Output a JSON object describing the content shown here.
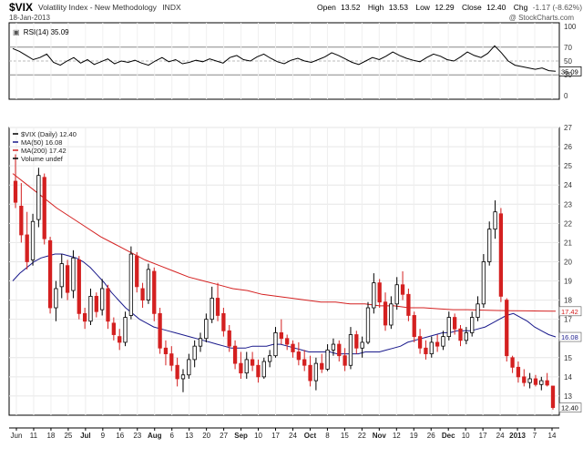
{
  "header": {
    "symbol": "$VIX",
    "name": "Volatility Index - New Methodology",
    "exchange": "INDX",
    "date": "18-Jan-2013",
    "open_label": "Open",
    "open": "13.52",
    "high_label": "High",
    "high": "13.53",
    "low_label": "Low",
    "low": "12.29",
    "close_label": "Close",
    "close": "12.40",
    "chg_label": "Chg",
    "chg": "-1.17 (-8.62%)",
    "copyright": "@ StockCharts.com"
  },
  "rsi_panel": {
    "legend": "RSI(14) 35.09",
    "ticks": [
      "100",
      "70",
      "50",
      "30",
      "0"
    ],
    "last_value": "35.09"
  },
  "price_panel": {
    "legend": [
      {
        "text": "$VIX (Daily) 12.40",
        "color": "#000000"
      },
      {
        "text": "MA(50) 16.08",
        "color": "#1a1a8c"
      },
      {
        "text": "MA(200) 17.42",
        "color": "#d42020"
      },
      {
        "text": "Volume undef",
        "color": "#000000"
      }
    ],
    "y_ticks": [
      "27",
      "26",
      "25",
      "24",
      "23",
      "22",
      "21",
      "20",
      "19",
      "18",
      "17",
      "16",
      "15",
      "14",
      "13"
    ],
    "last_price_label": "12.40",
    "ma200_label": "17.42",
    "ma50_label": "16.08"
  },
  "x_axis": {
    "labels": [
      "Jun",
      "11",
      "18",
      "25",
      "Jul",
      "9",
      "16",
      "23",
      "Aug",
      "6",
      "13",
      "20",
      "27",
      "Sep",
      "10",
      "17",
      "24",
      "Oct",
      "8",
      "15",
      "22",
      "Nov",
      "12",
      "19",
      "26",
      "Dec",
      "10",
      "17",
      "24",
      "2013",
      "7",
      "14"
    ]
  },
  "chart_data": {
    "type": "candlestick",
    "ylim": [
      12,
      27
    ],
    "rsi_ylim": [
      0,
      100
    ],
    "candles": [
      {
        "o": 24.2,
        "h": 25.6,
        "l": 22.8,
        "c": 23.1,
        "up": false
      },
      {
        "o": 22.9,
        "h": 24.1,
        "l": 21.0,
        "c": 21.4,
        "up": false
      },
      {
        "o": 21.4,
        "h": 22.6,
        "l": 19.6,
        "c": 20.0,
        "up": false
      },
      {
        "o": 20.1,
        "h": 22.5,
        "l": 19.8,
        "c": 22.1,
        "up": true
      },
      {
        "o": 22.2,
        "h": 24.9,
        "l": 21.8,
        "c": 24.5,
        "up": true
      },
      {
        "o": 24.4,
        "h": 24.6,
        "l": 20.9,
        "c": 21.2,
        "up": false
      },
      {
        "o": 21.1,
        "h": 21.3,
        "l": 17.3,
        "c": 17.6,
        "up": false
      },
      {
        "o": 17.6,
        "h": 19.0,
        "l": 16.9,
        "c": 18.6,
        "up": true
      },
      {
        "o": 18.7,
        "h": 20.4,
        "l": 18.1,
        "c": 19.9,
        "up": true
      },
      {
        "o": 19.8,
        "h": 20.1,
        "l": 18.0,
        "c": 18.4,
        "up": false
      },
      {
        "o": 18.5,
        "h": 20.6,
        "l": 18.1,
        "c": 20.2,
        "up": true
      },
      {
        "o": 20.1,
        "h": 20.3,
        "l": 17.0,
        "c": 17.3,
        "up": false
      },
      {
        "o": 17.3,
        "h": 17.6,
        "l": 16.5,
        "c": 16.9,
        "up": false
      },
      {
        "o": 16.9,
        "h": 18.6,
        "l": 16.7,
        "c": 18.2,
        "up": true
      },
      {
        "o": 18.2,
        "h": 18.4,
        "l": 17.1,
        "c": 17.4,
        "up": false
      },
      {
        "o": 17.5,
        "h": 19.1,
        "l": 17.2,
        "c": 18.6,
        "up": true
      },
      {
        "o": 18.6,
        "h": 18.8,
        "l": 16.5,
        "c": 16.9,
        "up": false
      },
      {
        "o": 16.8,
        "h": 17.1,
        "l": 15.9,
        "c": 16.2,
        "up": false
      },
      {
        "o": 16.1,
        "h": 16.5,
        "l": 15.4,
        "c": 15.8,
        "up": false
      },
      {
        "o": 15.8,
        "h": 17.4,
        "l": 15.6,
        "c": 17.1,
        "up": true
      },
      {
        "o": 17.2,
        "h": 20.8,
        "l": 17.0,
        "c": 20.4,
        "up": true
      },
      {
        "o": 20.3,
        "h": 20.5,
        "l": 18.4,
        "c": 18.7,
        "up": false
      },
      {
        "o": 18.6,
        "h": 18.9,
        "l": 17.6,
        "c": 18.0,
        "up": false
      },
      {
        "o": 18.0,
        "h": 19.9,
        "l": 17.8,
        "c": 19.6,
        "up": true
      },
      {
        "o": 19.5,
        "h": 19.7,
        "l": 16.9,
        "c": 17.3,
        "up": false
      },
      {
        "o": 17.3,
        "h": 17.6,
        "l": 15.2,
        "c": 15.5,
        "up": false
      },
      {
        "o": 15.5,
        "h": 15.9,
        "l": 14.6,
        "c": 15.2,
        "up": false
      },
      {
        "o": 15.2,
        "h": 15.6,
        "l": 14.3,
        "c": 14.6,
        "up": false
      },
      {
        "o": 14.6,
        "h": 15.0,
        "l": 13.5,
        "c": 13.9,
        "up": false
      },
      {
        "o": 13.9,
        "h": 14.4,
        "l": 13.2,
        "c": 14.1,
        "up": true
      },
      {
        "o": 14.1,
        "h": 15.2,
        "l": 13.9,
        "c": 14.9,
        "up": true
      },
      {
        "o": 14.9,
        "h": 15.9,
        "l": 14.5,
        "c": 15.6,
        "up": true
      },
      {
        "o": 15.6,
        "h": 16.3,
        "l": 15.3,
        "c": 16.0,
        "up": true
      },
      {
        "o": 16.0,
        "h": 17.3,
        "l": 15.8,
        "c": 17.0,
        "up": true
      },
      {
        "o": 17.0,
        "h": 18.7,
        "l": 16.8,
        "c": 18.1,
        "up": true
      },
      {
        "o": 18.1,
        "h": 18.9,
        "l": 16.9,
        "c": 17.2,
        "up": false
      },
      {
        "o": 17.3,
        "h": 17.6,
        "l": 16.1,
        "c": 16.4,
        "up": false
      },
      {
        "o": 16.4,
        "h": 16.7,
        "l": 15.3,
        "c": 15.6,
        "up": false
      },
      {
        "o": 15.6,
        "h": 15.9,
        "l": 14.4,
        "c": 14.7,
        "up": false
      },
      {
        "o": 14.7,
        "h": 15.3,
        "l": 13.9,
        "c": 14.2,
        "up": false
      },
      {
        "o": 14.2,
        "h": 15.3,
        "l": 13.9,
        "c": 14.9,
        "up": true
      },
      {
        "o": 14.9,
        "h": 15.3,
        "l": 14.3,
        "c": 14.6,
        "up": false
      },
      {
        "o": 14.6,
        "h": 14.9,
        "l": 13.7,
        "c": 14.0,
        "up": false
      },
      {
        "o": 14.0,
        "h": 15.0,
        "l": 13.9,
        "c": 14.8,
        "up": true
      },
      {
        "o": 14.8,
        "h": 15.4,
        "l": 14.5,
        "c": 15.1,
        "up": true
      },
      {
        "o": 15.1,
        "h": 16.6,
        "l": 15.0,
        "c": 16.3,
        "up": true
      },
      {
        "o": 16.3,
        "h": 17.0,
        "l": 15.7,
        "c": 16.0,
        "up": false
      },
      {
        "o": 16.0,
        "h": 16.2,
        "l": 15.4,
        "c": 15.7,
        "up": false
      },
      {
        "o": 15.7,
        "h": 15.9,
        "l": 15.0,
        "c": 15.3,
        "up": false
      },
      {
        "o": 15.3,
        "h": 15.8,
        "l": 14.6,
        "c": 14.9,
        "up": false
      },
      {
        "o": 14.9,
        "h": 15.4,
        "l": 14.3,
        "c": 14.6,
        "up": false
      },
      {
        "o": 14.6,
        "h": 15.1,
        "l": 13.5,
        "c": 13.8,
        "up": false
      },
      {
        "o": 13.8,
        "h": 15.0,
        "l": 13.3,
        "c": 14.7,
        "up": true
      },
      {
        "o": 14.7,
        "h": 15.2,
        "l": 14.2,
        "c": 14.4,
        "up": false
      },
      {
        "o": 14.4,
        "h": 15.7,
        "l": 14.3,
        "c": 15.4,
        "up": true
      },
      {
        "o": 15.4,
        "h": 16.0,
        "l": 15.1,
        "c": 15.7,
        "up": true
      },
      {
        "o": 15.7,
        "h": 15.9,
        "l": 14.8,
        "c": 15.1,
        "up": false
      },
      {
        "o": 15.1,
        "h": 15.5,
        "l": 14.3,
        "c": 14.6,
        "up": false
      },
      {
        "o": 14.6,
        "h": 16.6,
        "l": 14.4,
        "c": 16.2,
        "up": true
      },
      {
        "o": 16.2,
        "h": 16.4,
        "l": 15.2,
        "c": 15.5,
        "up": false
      },
      {
        "o": 15.5,
        "h": 16.1,
        "l": 15.0,
        "c": 15.8,
        "up": true
      },
      {
        "o": 15.8,
        "h": 17.9,
        "l": 15.7,
        "c": 17.6,
        "up": true
      },
      {
        "o": 17.6,
        "h": 19.4,
        "l": 17.3,
        "c": 18.9,
        "up": true
      },
      {
        "o": 18.9,
        "h": 19.1,
        "l": 17.6,
        "c": 17.9,
        "up": false
      },
      {
        "o": 17.9,
        "h": 18.4,
        "l": 16.4,
        "c": 16.7,
        "up": false
      },
      {
        "o": 16.7,
        "h": 18.2,
        "l": 16.5,
        "c": 17.8,
        "up": true
      },
      {
        "o": 17.8,
        "h": 19.2,
        "l": 17.5,
        "c": 18.8,
        "up": true
      },
      {
        "o": 18.8,
        "h": 19.5,
        "l": 18.0,
        "c": 18.3,
        "up": false
      },
      {
        "o": 18.3,
        "h": 18.6,
        "l": 16.9,
        "c": 17.2,
        "up": false
      },
      {
        "o": 17.2,
        "h": 17.4,
        "l": 15.8,
        "c": 16.1,
        "up": false
      },
      {
        "o": 16.1,
        "h": 16.5,
        "l": 15.2,
        "c": 15.5,
        "up": false
      },
      {
        "o": 15.5,
        "h": 15.9,
        "l": 14.9,
        "c": 15.2,
        "up": false
      },
      {
        "o": 15.2,
        "h": 16.1,
        "l": 15.0,
        "c": 15.8,
        "up": true
      },
      {
        "o": 15.8,
        "h": 16.2,
        "l": 15.3,
        "c": 15.6,
        "up": false
      },
      {
        "o": 15.6,
        "h": 16.4,
        "l": 15.4,
        "c": 16.1,
        "up": true
      },
      {
        "o": 16.1,
        "h": 17.4,
        "l": 15.9,
        "c": 17.1,
        "up": true
      },
      {
        "o": 17.1,
        "h": 17.3,
        "l": 16.2,
        "c": 16.5,
        "up": false
      },
      {
        "o": 16.5,
        "h": 16.7,
        "l": 15.6,
        "c": 15.9,
        "up": false
      },
      {
        "o": 15.9,
        "h": 16.6,
        "l": 15.7,
        "c": 16.3,
        "up": true
      },
      {
        "o": 16.3,
        "h": 17.4,
        "l": 16.1,
        "c": 17.1,
        "up": true
      },
      {
        "o": 17.1,
        "h": 18.2,
        "l": 16.9,
        "c": 17.8,
        "up": true
      },
      {
        "o": 17.8,
        "h": 20.4,
        "l": 17.6,
        "c": 20.0,
        "up": true
      },
      {
        "o": 20.0,
        "h": 22.1,
        "l": 19.8,
        "c": 21.7,
        "up": true
      },
      {
        "o": 21.7,
        "h": 23.2,
        "l": 21.2,
        "c": 22.6,
        "up": true
      },
      {
        "o": 22.5,
        "h": 22.8,
        "l": 17.9,
        "c": 18.2,
        "up": false
      },
      {
        "o": 18.0,
        "h": 18.1,
        "l": 14.8,
        "c": 15.1,
        "up": false
      },
      {
        "o": 15.0,
        "h": 15.1,
        "l": 14.2,
        "c": 14.5,
        "up": false
      },
      {
        "o": 14.5,
        "h": 14.8,
        "l": 13.7,
        "c": 14.0,
        "up": false
      },
      {
        "o": 14.0,
        "h": 14.4,
        "l": 13.5,
        "c": 13.7,
        "up": false
      },
      {
        "o": 13.7,
        "h": 14.2,
        "l": 13.4,
        "c": 13.9,
        "up": true
      },
      {
        "o": 13.9,
        "h": 14.1,
        "l": 13.5,
        "c": 13.6,
        "up": false
      },
      {
        "o": 13.6,
        "h": 14.0,
        "l": 13.3,
        "c": 13.8,
        "up": true
      },
      {
        "o": 13.8,
        "h": 14.2,
        "l": 13.5,
        "c": 13.57,
        "up": false
      },
      {
        "o": 13.52,
        "h": 13.53,
        "l": 12.29,
        "c": 12.4,
        "up": false
      }
    ],
    "ma50": [
      19.0,
      19.4,
      19.7,
      20.0,
      20.2,
      20.3,
      20.4,
      20.4,
      20.3,
      20.2,
      20.0,
      19.7,
      19.3,
      18.9,
      18.4,
      18.0,
      17.6,
      17.3,
      17.0,
      16.8,
      16.6,
      16.5,
      16.4,
      16.3,
      16.2,
      16.1,
      16.0,
      15.9,
      15.8,
      15.7,
      15.6,
      15.5,
      15.5,
      15.5,
      15.6,
      15.6,
      15.6,
      15.7,
      15.7,
      15.6,
      15.5,
      15.4,
      15.3,
      15.3,
      15.3,
      15.3,
      15.2,
      15.2,
      15.2,
      15.2,
      15.3,
      15.3,
      15.3,
      15.4,
      15.5,
      15.6,
      15.8,
      15.9,
      16.0,
      16.1,
      16.2,
      16.3,
      16.3,
      16.4,
      16.4,
      16.4,
      16.5,
      16.6,
      16.8,
      17.0,
      17.2,
      17.3,
      17.1,
      16.9,
      16.6,
      16.4,
      16.2,
      16.08
    ],
    "ma200": [
      24.6,
      24.0,
      23.4,
      22.8,
      22.3,
      21.8,
      21.3,
      20.9,
      20.5,
      20.1,
      19.8,
      19.5,
      19.2,
      19.0,
      18.8,
      18.6,
      18.5,
      18.3,
      18.2,
      18.1,
      18.0,
      17.9,
      17.9,
      17.8,
      17.8,
      17.7,
      17.7,
      17.6,
      17.6,
      17.55,
      17.5,
      17.5,
      17.48,
      17.46,
      17.45,
      17.44,
      17.43,
      17.42
    ],
    "rsi": [
      68,
      64,
      58,
      52,
      55,
      60,
      48,
      44,
      50,
      55,
      47,
      52,
      45,
      49,
      53,
      46,
      50,
      48,
      51,
      47,
      44,
      50,
      55,
      49,
      52,
      46,
      48,
      51,
      49,
      53,
      50,
      47,
      55,
      58,
      52,
      50,
      56,
      60,
      54,
      49,
      46,
      51,
      54,
      50,
      48,
      52,
      56,
      62,
      58,
      53,
      48,
      45,
      50,
      55,
      52,
      57,
      63,
      58,
      54,
      51,
      49,
      55,
      60,
      57,
      52,
      50,
      56,
      63,
      58,
      55,
      61,
      72,
      62,
      50,
      44,
      42,
      40,
      38,
      40,
      36,
      35.09
    ]
  }
}
